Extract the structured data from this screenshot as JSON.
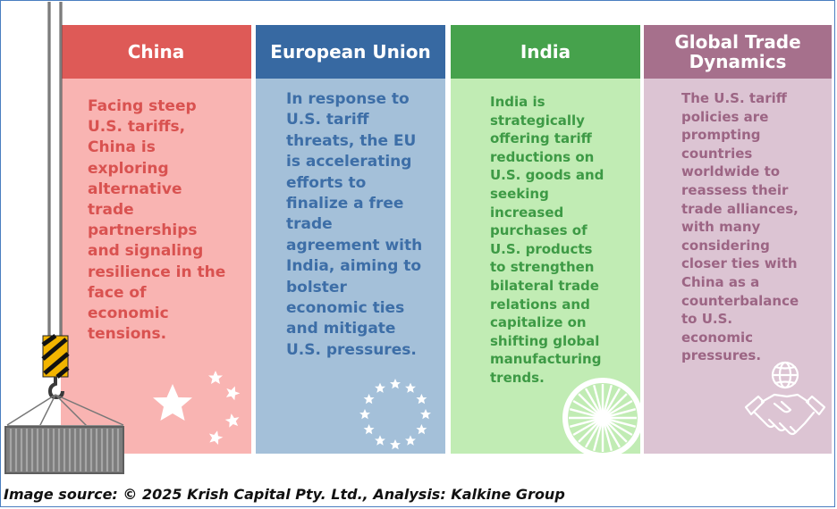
{
  "cards": [
    {
      "title": "China",
      "body": "Facing steep\nU.S. tariffs,\nChina is\nexploring\nalternative\ntrade\npartnerships\nand signaling\nresilience in the\nface of\neconomic\ntensions.",
      "icon": "stars-icon"
    },
    {
      "title": "European\nUnion",
      "body": "In response to\nU.S. tariff\nthreats, the EU\nis accelerating\nefforts to\nfinalize a free\ntrade\nagreement with\nIndia, aiming to\nbolster\neconomic ties\nand mitigate\nU.S. pressures.",
      "icon": "eu-stars-circle-icon"
    },
    {
      "title": "India",
      "body": "India is\nstrategically\noffering tariff\nreductions on\nU.S. goods and\nseeking\nincreased\npurchases of\nU.S. products\nto strengthen\nbilateral trade\nrelations and\ncapitalize on\nshifting global\nmanufacturing\ntrends.",
      "icon": "ashoka-chakra-icon"
    },
    {
      "title": "Global Trade\nDynamics",
      "body": "The U.S. tariff\npolicies are\nprompting\ncountries\nworldwide to\nreassess their\ntrade alliances,\nwith many\nconsidering\ncloser ties with\nChina as a\ncounterbalance\nto U.S.\neconomic\npressures.",
      "icon": "globe-handshake-icon"
    }
  ],
  "decorations": {
    "left": "crane-container-icon"
  },
  "colors": {
    "china_header": "#de5a57",
    "eu_header": "#3769a2",
    "india_header": "#46a24c",
    "global_header": "#a6708c"
  },
  "caption": "Image source: © 2025 Krish Capital Pty. Ltd., Analysis: Kalkine Group"
}
